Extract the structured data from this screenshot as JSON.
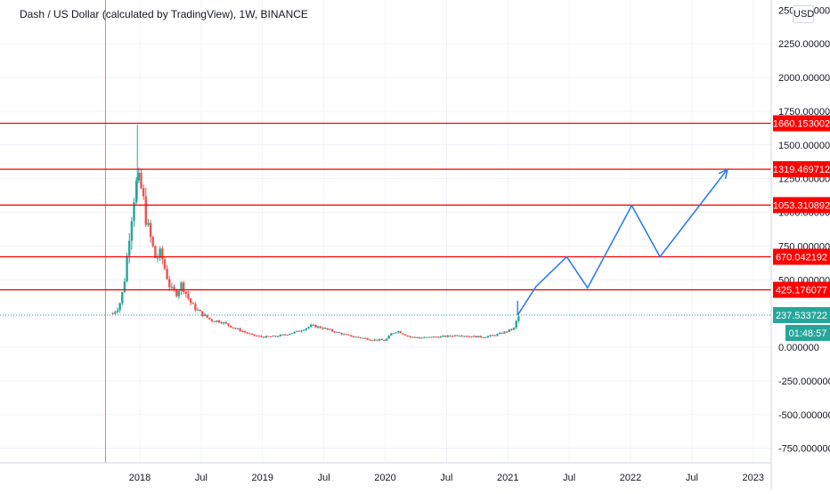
{
  "header": {
    "title": "Dash / US Dollar (calculated by TradingView), 1W, BINANCE",
    "currency_button": "USD"
  },
  "colors": {
    "up_candle": "#26a69a",
    "down_candle": "#ef5350",
    "level_line": "#ff0000",
    "projection_line": "#2f7cf0",
    "price_tag": "#26a69a",
    "grid": "#f0f3fa",
    "axis_text": "#131722"
  },
  "chart_data": {
    "type": "candlestick",
    "title": "Dash / US Dollar (calculated by TradingView), 1W, BINANCE",
    "symbol": "Dash / US Dollar",
    "interval": "1W",
    "exchange": "BINANCE",
    "y_axis": {
      "ticks": [
        2250,
        2000,
        1750,
        1500,
        1250,
        1000,
        750,
        500,
        250,
        0,
        -250,
        -500,
        -750
      ],
      "tick_labels": [
        "2250.000000",
        "2000.000000",
        "1750.000000",
        "1500.000000",
        "1250.000000",
        "1000.000000",
        "750.000000",
        "500.000000",
        "250.000000",
        "0.000000",
        "-250.000000",
        "-500.000000",
        "-750.000000"
      ],
      "range": [
        -830,
        2520
      ],
      "partial_top_label": "2500.000000"
    },
    "x_axis": {
      "ticks": [
        {
          "label": "2018",
          "t": 2018.0
        },
        {
          "label": "Jul",
          "t": 2018.5
        },
        {
          "label": "2019",
          "t": 2019.0
        },
        {
          "label": "Jul",
          "t": 2019.5
        },
        {
          "label": "2020",
          "t": 2020.0
        },
        {
          "label": "Jul",
          "t": 2020.5
        },
        {
          "label": "2021",
          "t": 2021.0
        },
        {
          "label": "Jul",
          "t": 2021.5
        },
        {
          "label": "2022",
          "t": 2022.0
        },
        {
          "label": "Jul",
          "t": 2022.5
        },
        {
          "label": "2023",
          "t": 2023.0
        }
      ],
      "range": [
        2016.97,
        2023.62
      ]
    },
    "price_path": [
      [
        2017.78,
        250
      ],
      [
        2017.83,
        300
      ],
      [
        2017.87,
        450
      ],
      [
        2017.91,
        800
      ],
      [
        2017.95,
        1100
      ],
      [
        2017.98,
        1250
      ],
      [
        2018.02,
        1150
      ],
      [
        2018.05,
        950
      ],
      [
        2018.09,
        800
      ],
      [
        2018.13,
        650
      ],
      [
        2018.17,
        700
      ],
      [
        2018.21,
        560
      ],
      [
        2018.25,
        430
      ],
      [
        2018.3,
        400
      ],
      [
        2018.34,
        470
      ],
      [
        2018.38,
        390
      ],
      [
        2018.42,
        320
      ],
      [
        2018.46,
        280
      ],
      [
        2018.5,
        250
      ],
      [
        2018.58,
        200
      ],
      [
        2018.66,
        190
      ],
      [
        2018.75,
        150
      ],
      [
        2018.83,
        120
      ],
      [
        2018.91,
        90
      ],
      [
        2019.0,
        75
      ],
      [
        2019.1,
        80
      ],
      [
        2019.2,
        95
      ],
      [
        2019.3,
        120
      ],
      [
        2019.4,
        160
      ],
      [
        2019.5,
        140
      ],
      [
        2019.6,
        110
      ],
      [
        2019.7,
        85
      ],
      [
        2019.8,
        70
      ],
      [
        2019.9,
        55
      ],
      [
        2020.0,
        50
      ],
      [
        2020.05,
        100
      ],
      [
        2020.1,
        120
      ],
      [
        2020.2,
        75
      ],
      [
        2020.3,
        70
      ],
      [
        2020.4,
        75
      ],
      [
        2020.5,
        80
      ],
      [
        2020.6,
        90
      ],
      [
        2020.7,
        80
      ],
      [
        2020.8,
        75
      ],
      [
        2020.9,
        90
      ],
      [
        2021.0,
        120
      ],
      [
        2021.05,
        140
      ],
      [
        2021.08,
        220
      ],
      [
        2021.1,
        237.53
      ]
    ],
    "spike_high": {
      "t": 2017.98,
      "value": 1650
    },
    "horizontal_levels": [
      1660.153002,
      1319.469712,
      1053.310892,
      670.042192,
      425.176077
    ],
    "horizontal_level_labels": [
      "1660.153002",
      "1319.469712",
      "1053.310892",
      "670.042192",
      "425.176077"
    ],
    "last_price": 237.533722,
    "last_price_label": "237.533722",
    "countdown": "01:48:57",
    "projection_path": [
      [
        2021.08,
        237
      ],
      [
        2021.23,
        450
      ],
      [
        2021.48,
        670
      ],
      [
        2021.65,
        440
      ],
      [
        2022.01,
        1050
      ],
      [
        2022.24,
        670
      ],
      [
        2022.79,
        1319
      ]
    ],
    "vertical_marker_t": 2017.72,
    "grid": true
  }
}
